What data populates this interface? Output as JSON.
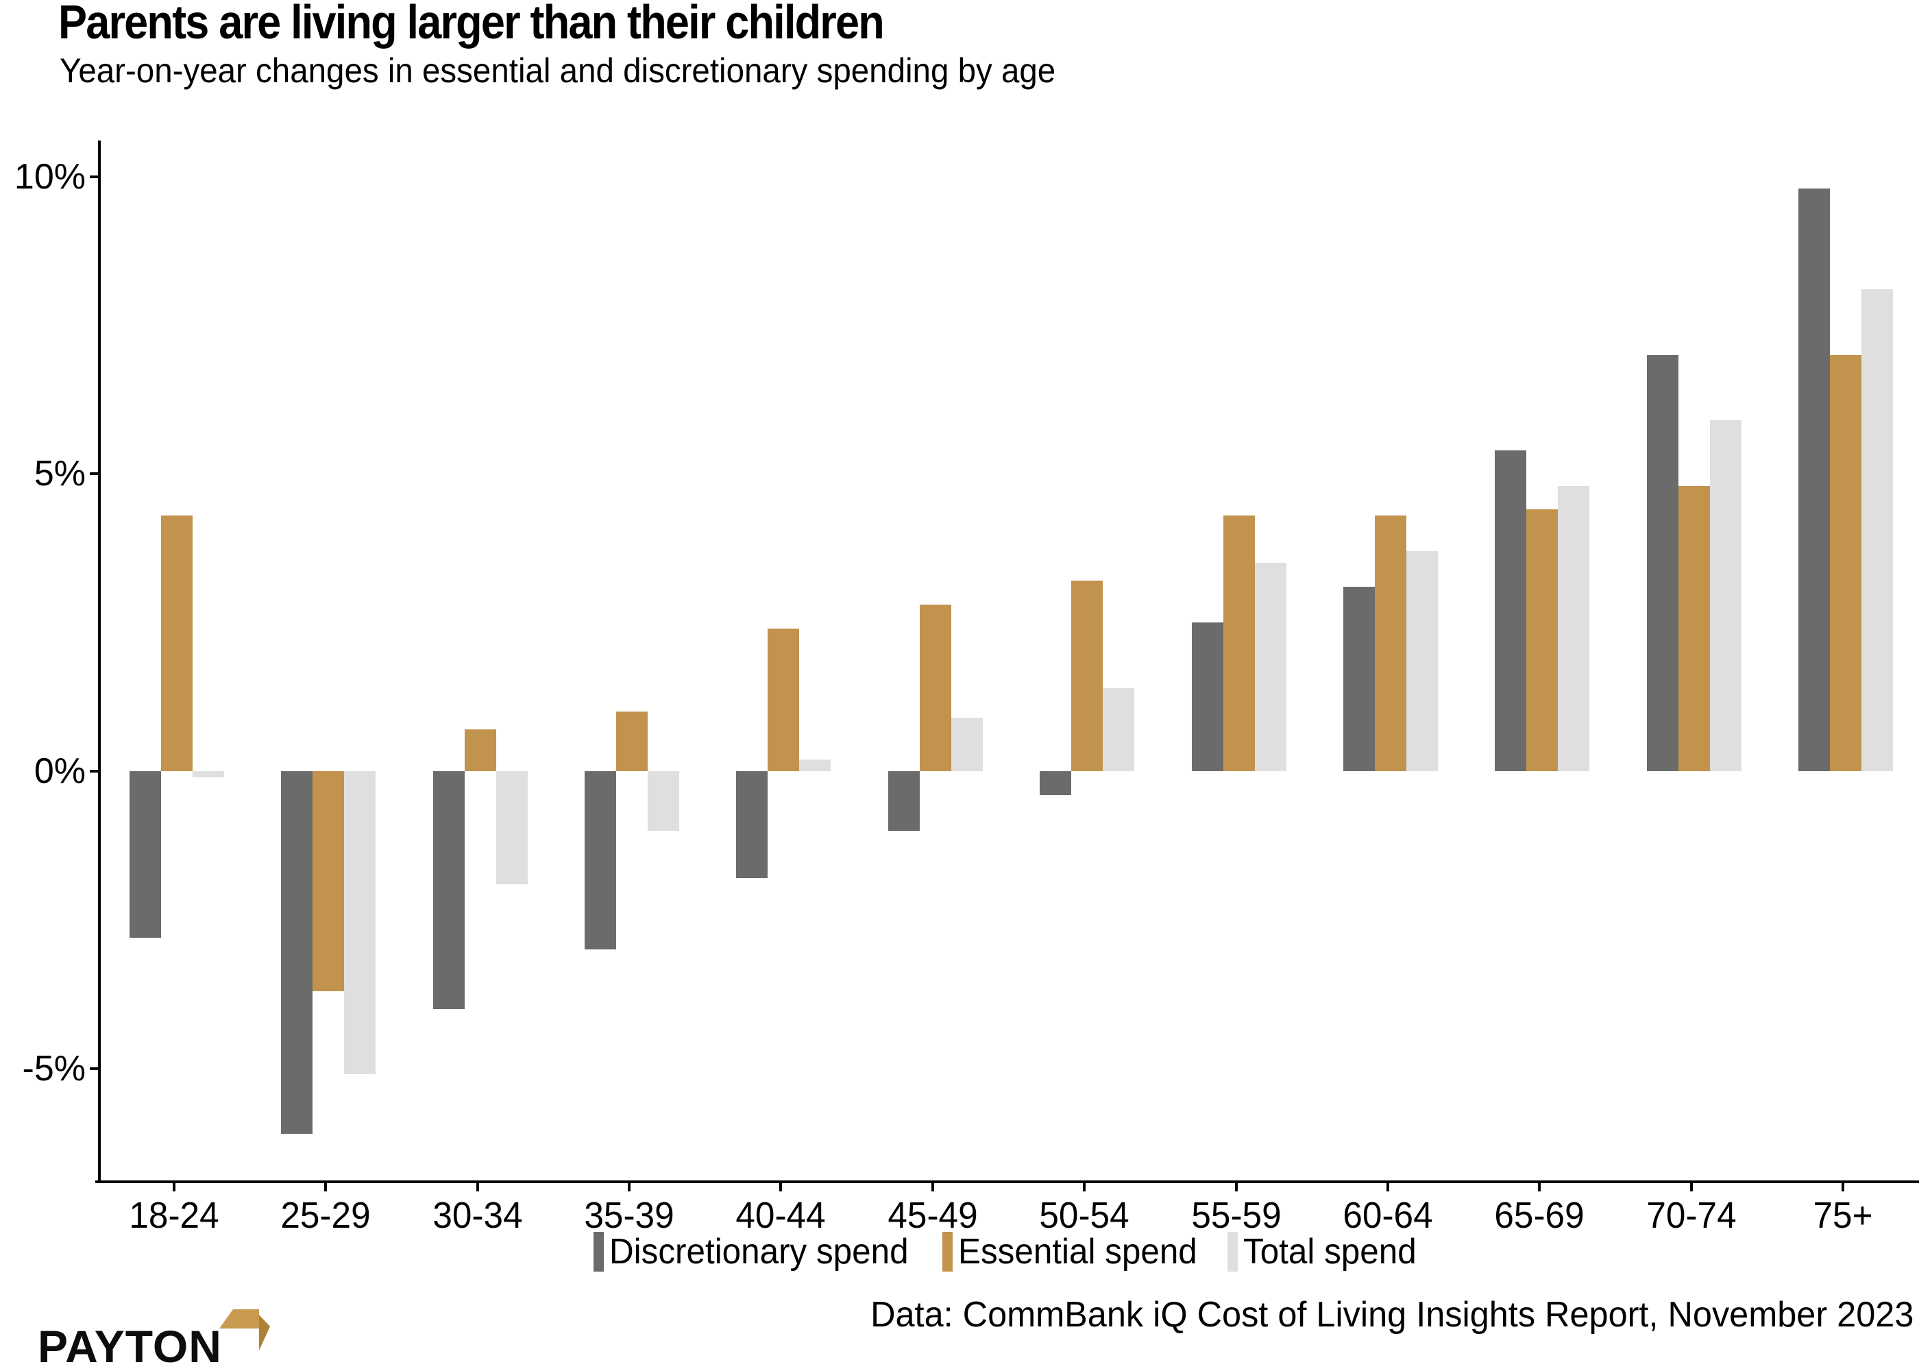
{
  "header": {
    "title": "Parents are living larger than their children",
    "subtitle": "Year-on-year changes in essential and discretionary spending by age"
  },
  "chart_data": {
    "type": "bar",
    "title": "Parents are living larger than their children",
    "subtitle": "Year-on-year changes in essential and discretionary spending by age",
    "categories": [
      "18-24",
      "25-29",
      "30-34",
      "35-39",
      "40-44",
      "45-49",
      "50-54",
      "55-59",
      "60-64",
      "65-69",
      "70-74",
      "75+"
    ],
    "series": [
      {
        "name": "Discretionary spend",
        "color": "#6b6b6b",
        "values": [
          -2.8,
          -6.1,
          -4.0,
          -3.0,
          -1.8,
          -1.0,
          -0.4,
          2.5,
          3.1,
          5.4,
          7.0,
          9.8
        ]
      },
      {
        "name": "Essential spend",
        "color": "#c2934d",
        "values": [
          4.3,
          -3.7,
          0.7,
          1.0,
          2.4,
          2.8,
          3.2,
          4.3,
          4.3,
          4.4,
          4.8,
          7.0
        ]
      },
      {
        "name": "Total spend",
        "color": "#dfdfdf",
        "values": [
          -0.1,
          -5.1,
          -1.9,
          -1.0,
          0.2,
          0.9,
          1.4,
          3.5,
          3.7,
          4.8,
          5.9,
          8.1
        ]
      }
    ],
    "yticks": [
      {
        "label": "10%",
        "value": 10
      },
      {
        "label": "5%",
        "value": 5
      },
      {
        "label": "0%",
        "value": 0
      },
      {
        "label": "-5%",
        "value": -5
      }
    ],
    "ylim": [
      -6.9,
      10.6
    ],
    "ylabel": "",
    "xlabel": "",
    "grid": false,
    "legend_position": "bottom"
  },
  "legend": {
    "items": [
      "Discretionary spend",
      "Essential spend",
      "Total spend"
    ]
  },
  "footer": {
    "source": "Data: CommBank iQ Cost of Living Insights Report, November 2023"
  },
  "logo": {
    "text": "PAYTON",
    "icon": "gold-flag-arrow-icon",
    "gold": "#c79a4f",
    "gold_dark": "#ad8136"
  }
}
